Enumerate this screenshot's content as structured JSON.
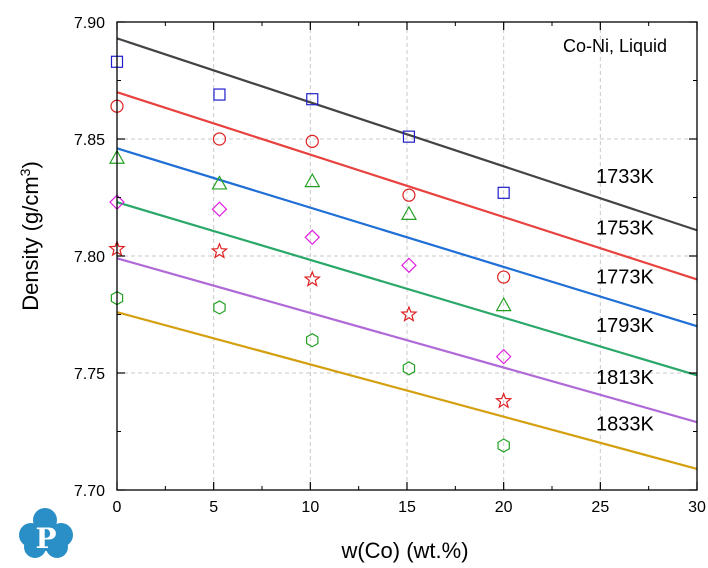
{
  "chart_data": {
    "type": "scatter",
    "annotation": "Co-Ni, Liquid",
    "xlabel": "w(Co) (wt.%)",
    "ylabel_main": "Density (g/cm",
    "ylabel_sup": "3",
    "ylabel_close": ")",
    "xlim": [
      0,
      30
    ],
    "ylim": [
      7.7,
      7.9
    ],
    "xticks": [
      0,
      5,
      10,
      15,
      20,
      25,
      30
    ],
    "xtick_labels": [
      "0",
      "5",
      "10",
      "15",
      "20",
      "25",
      "30"
    ],
    "yticks": [
      7.7,
      7.75,
      7.8,
      7.85,
      7.9
    ],
    "ytick_labels": [
      "7.70",
      "7.75",
      "7.80",
      "7.85",
      "7.90"
    ],
    "grid": true,
    "series": [
      {
        "name": "1733K",
        "line_color": "#444444",
        "marker": "square",
        "marker_color": "#1f1fcc",
        "line": [
          [
            0,
            7.893
          ],
          [
            30,
            7.811
          ]
        ],
        "points": [
          [
            0,
            7.883
          ],
          [
            5.3,
            7.869
          ],
          [
            10.1,
            7.867
          ],
          [
            15.1,
            7.851
          ],
          [
            20.0,
            7.827
          ]
        ]
      },
      {
        "name": "1753K",
        "line_color": "#e8423f",
        "marker": "circle",
        "marker_color": "#e02020",
        "line": [
          [
            0,
            7.87
          ],
          [
            30,
            7.79
          ]
        ],
        "points": [
          [
            0,
            7.864
          ],
          [
            5.3,
            7.85
          ],
          [
            10.1,
            7.849
          ],
          [
            15.1,
            7.826
          ],
          [
            20.0,
            7.791
          ]
        ]
      },
      {
        "name": "1773K",
        "line_color": "#1f6fd6",
        "marker": "triangle",
        "marker_color": "#23a023",
        "line": [
          [
            0,
            7.846
          ],
          [
            30,
            7.77
          ]
        ],
        "points": [
          [
            0,
            7.842
          ],
          [
            5.3,
            7.831
          ],
          [
            10.1,
            7.832
          ],
          [
            15.1,
            7.818
          ],
          [
            20.0,
            7.779
          ]
        ]
      },
      {
        "name": "1793K",
        "line_color": "#2aa86a",
        "marker": "diamond",
        "marker_color": "#e020e0",
        "line": [
          [
            0,
            7.823
          ],
          [
            30,
            7.749
          ]
        ],
        "points": [
          [
            0,
            7.823
          ],
          [
            5.3,
            7.82
          ],
          [
            10.1,
            7.808
          ],
          [
            15.1,
            7.796
          ],
          [
            20.0,
            7.757
          ]
        ]
      },
      {
        "name": "1813K",
        "line_color": "#b06ad8",
        "marker": "star",
        "marker_color": "#e02020",
        "line": [
          [
            0,
            7.799
          ],
          [
            30,
            7.729
          ]
        ],
        "points": [
          [
            0,
            7.803
          ],
          [
            5.3,
            7.802
          ],
          [
            10.1,
            7.79
          ],
          [
            15.1,
            7.775
          ],
          [
            20.0,
            7.738
          ]
        ]
      },
      {
        "name": "1833K",
        "line_color": "#d4a010",
        "marker": "hexagon",
        "marker_color": "#23a023",
        "line": [
          [
            0,
            7.776
          ],
          [
            30,
            7.709
          ]
        ],
        "points": [
          [
            0,
            7.782
          ],
          [
            5.3,
            7.778
          ],
          [
            10.1,
            7.764
          ],
          [
            15.1,
            7.752
          ],
          [
            20.0,
            7.719
          ]
        ]
      }
    ],
    "series_label_positions": [
      "right-of-line",
      "right-of-line",
      "right-of-line",
      "right-of-line",
      "right-of-line",
      "right-of-line"
    ]
  },
  "logo": {
    "icon": "p-cloud-logo-icon",
    "letter": "P",
    "color": "#2b8fc7"
  }
}
